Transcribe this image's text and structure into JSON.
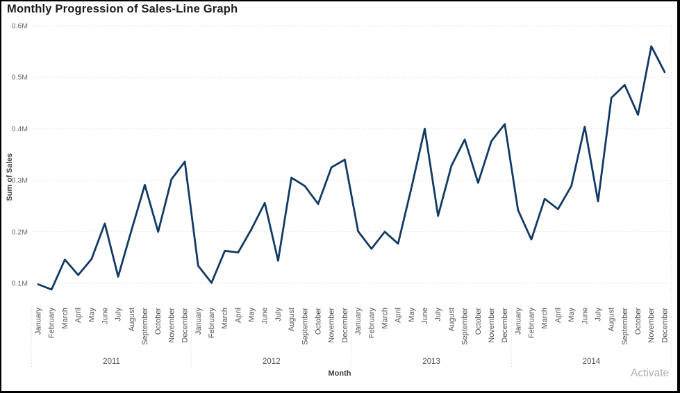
{
  "title": "Monthly Progression of Sales-Line Graph",
  "watermark": "Activate",
  "axes": {
    "x_title": "Month",
    "y_title": "Sum of Sales"
  },
  "chart_data": {
    "type": "line",
    "title": "Monthly Progression of Sales-Line Graph",
    "xlabel": "Month",
    "ylabel": "Sum of Sales",
    "legend_position": "none",
    "grid": "horizontal dotted gridlines",
    "line_color": "#123A64",
    "label_color": "#5a5a5a",
    "grid_color": "#d2d2d2",
    "unit": "M",
    "ylim": [
      0.05,
      0.6
    ],
    "y_tick_labels": [
      "0.1M",
      "0.2M",
      "0.3M",
      "0.4M",
      "0.5M",
      "0.6M"
    ],
    "y_tick_values": [
      0.1,
      0.2,
      0.3,
      0.4,
      0.5,
      0.6
    ],
    "years": [
      "2011",
      "2012",
      "2013",
      "2014"
    ],
    "months": [
      "January",
      "February",
      "March",
      "April",
      "May",
      "June",
      "July",
      "August",
      "September",
      "October",
      "November",
      "December"
    ],
    "series": [
      {
        "name": "Sum of Sales",
        "values": [
          0.098,
          0.088,
          0.146,
          0.116,
          0.147,
          0.216,
          0.113,
          0.203,
          0.291,
          0.2,
          0.302,
          0.336,
          0.134,
          0.101,
          0.163,
          0.16,
          0.205,
          0.256,
          0.144,
          0.305,
          0.289,
          0.254,
          0.325,
          0.34,
          0.201,
          0.167,
          0.2,
          0.177,
          0.285,
          0.4,
          0.231,
          0.328,
          0.379,
          0.295,
          0.376,
          0.409,
          0.242,
          0.185,
          0.264,
          0.244,
          0.289,
          0.404,
          0.259,
          0.46,
          0.485,
          0.427,
          0.56,
          0.51
        ]
      }
    ]
  }
}
